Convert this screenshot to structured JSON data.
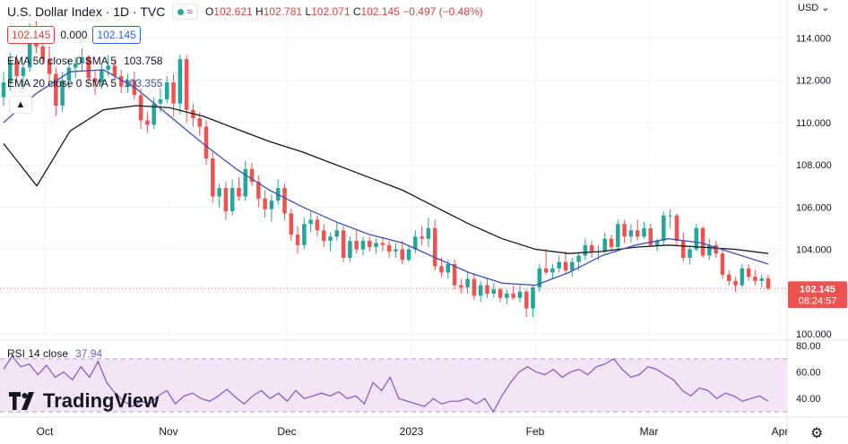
{
  "header": {
    "title": "U.S. Dollar Index · 1D · TVC",
    "wave_symbol": "≈",
    "ohlc": [
      {
        "label": "O",
        "value": "102.621"
      },
      {
        "label": "H",
        "value": "102.781"
      },
      {
        "label": "L",
        "value": "102.071"
      },
      {
        "label": "C",
        "value": "102.145"
      }
    ],
    "change": "−0.497 (−0.48%)"
  },
  "quote_boxes": {
    "bid": "102.145",
    "spread": "0.000",
    "ask": "102.145"
  },
  "indicators": [
    {
      "label": "EMA 50 close 0 SMA 5",
      "value": "103.758",
      "color": "#131722"
    },
    {
      "label": "EMA 20 close 0 SMA 5",
      "value": "103.355",
      "color": "#3f51b5"
    }
  ],
  "rsi": {
    "label": "RSI 14 close",
    "value": "37.94"
  },
  "currency": "USD",
  "price_tag": {
    "price": "102.145",
    "countdown": "08:24:57"
  },
  "logo_text": "TradingView",
  "colors": {
    "up": "#26a69a",
    "down": "#ef5350",
    "ema50": "#131722",
    "ema20": "#3f51b5",
    "rsi": "#7e57c2",
    "rsi_band": "#f3e5f5"
  },
  "chart_data": {
    "type": "candlestick",
    "y_axis": {
      "ticks": [
        "100.000",
        "102.000",
        "104.000",
        "106.000",
        "108.000",
        "110.000",
        "112.000",
        "114.000"
      ],
      "range": [
        99.7,
        115.8
      ]
    },
    "x_axis": {
      "ticks": [
        "Oct",
        "Nov",
        "Dec",
        "2023",
        "Feb",
        "Mar",
        "Apr"
      ]
    },
    "rsi_axis": {
      "ticks": [
        "80.00",
        "60.00",
        "40.00"
      ],
      "range": [
        26,
        84
      ],
      "band": [
        30,
        70
      ]
    },
    "candles": [
      [
        111.2,
        112.4,
        110.8,
        111.9
      ],
      [
        111.9,
        113.3,
        111.5,
        112.9
      ],
      [
        112.9,
        113.2,
        111.9,
        112.2
      ],
      [
        112.2,
        112.8,
        111.6,
        112.6
      ],
      [
        112.6,
        114.7,
        112.4,
        114.1
      ],
      [
        114.1,
        114.8,
        113.3,
        113.6
      ],
      [
        113.6,
        114.2,
        112.8,
        113.0
      ],
      [
        113.0,
        113.6,
        111.9,
        112.3
      ],
      [
        112.3,
        112.6,
        110.3,
        110.8
      ],
      [
        110.8,
        112.4,
        110.5,
        112.0
      ],
      [
        112.0,
        113.0,
        111.6,
        112.6
      ],
      [
        112.6,
        113.1,
        112.1,
        112.8
      ],
      [
        112.8,
        113.5,
        112.4,
        113.1
      ],
      [
        113.1,
        113.2,
        111.8,
        112.1
      ],
      [
        112.1,
        112.5,
        111.3,
        111.9
      ],
      [
        111.9,
        112.8,
        111.6,
        112.5
      ],
      [
        112.5,
        113.2,
        112.2,
        112.7
      ],
      [
        112.7,
        113.0,
        112.0,
        112.2
      ],
      [
        112.2,
        112.5,
        111.4,
        111.7
      ],
      [
        111.7,
        112.3,
        111.4,
        112.0
      ],
      [
        112.0,
        112.4,
        111.1,
        111.3
      ],
      [
        111.3,
        111.6,
        109.7,
        110.1
      ],
      [
        110.1,
        110.5,
        109.5,
        109.9
      ],
      [
        109.9,
        111.2,
        109.7,
        110.9
      ],
      [
        110.9,
        111.6,
        110.5,
        111.1
      ],
      [
        111.1,
        112.2,
        110.9,
        111.9
      ],
      [
        111.9,
        112.3,
        110.3,
        110.9
      ],
      [
        110.9,
        113.2,
        110.4,
        113.0
      ],
      [
        113.0,
        113.2,
        110.0,
        110.6
      ],
      [
        110.6,
        110.9,
        109.8,
        110.2
      ],
      [
        110.2,
        110.5,
        109.4,
        109.8
      ],
      [
        109.8,
        110.1,
        108.0,
        108.3
      ],
      [
        108.3,
        108.6,
        106.2,
        106.5
      ],
      [
        106.5,
        107.1,
        106.0,
        106.9
      ],
      [
        106.9,
        107.2,
        105.4,
        105.8
      ],
      [
        105.8,
        107.3,
        105.6,
        106.9
      ],
      [
        106.9,
        107.4,
        106.3,
        106.5
      ],
      [
        106.5,
        108.2,
        106.3,
        107.8
      ],
      [
        107.8,
        108.1,
        107.0,
        107.2
      ],
      [
        107.2,
        107.5,
        106.0,
        106.4
      ],
      [
        106.4,
        106.8,
        105.5,
        105.9
      ],
      [
        105.9,
        106.6,
        105.3,
        106.3
      ],
      [
        106.3,
        107.3,
        106.1,
        106.9
      ],
      [
        106.9,
        107.1,
        105.4,
        105.7
      ],
      [
        105.7,
        105.9,
        104.4,
        104.7
      ],
      [
        104.7,
        105.1,
        103.8,
        104.2
      ],
      [
        104.2,
        105.5,
        104.0,
        105.2
      ],
      [
        105.2,
        105.8,
        104.8,
        105.4
      ],
      [
        105.4,
        105.6,
        104.6,
        104.9
      ],
      [
        104.9,
        105.2,
        104.1,
        104.4
      ],
      [
        104.4,
        104.8,
        103.9,
        104.6
      ],
      [
        104.6,
        105.3,
        104.4,
        104.9
      ],
      [
        104.9,
        105.1,
        103.4,
        103.6
      ],
      [
        103.6,
        104.6,
        103.4,
        104.4
      ],
      [
        104.4,
        104.9,
        103.8,
        104.0
      ],
      [
        104.0,
        104.6,
        103.7,
        104.4
      ],
      [
        104.4,
        104.6,
        103.9,
        104.1
      ],
      [
        104.1,
        104.5,
        103.8,
        104.3
      ],
      [
        104.3,
        104.6,
        103.9,
        104.2
      ],
      [
        104.2,
        104.4,
        103.6,
        103.9
      ],
      [
        103.9,
        104.3,
        103.6,
        104.0
      ],
      [
        104.0,
        104.4,
        103.3,
        103.5
      ],
      [
        103.5,
        104.2,
        103.4,
        104.0
      ],
      [
        104.0,
        104.9,
        103.8,
        104.6
      ],
      [
        104.6,
        105.1,
        104.2,
        104.5
      ],
      [
        104.5,
        105.5,
        104.1,
        105.0
      ],
      [
        105.0,
        105.4,
        103.0,
        103.2
      ],
      [
        103.2,
        103.6,
        102.7,
        102.9
      ],
      [
        102.9,
        103.5,
        102.6,
        103.3
      ],
      [
        103.3,
        103.5,
        102.1,
        102.3
      ],
      [
        102.3,
        102.6,
        101.9,
        102.2
      ],
      [
        102.2,
        102.9,
        101.9,
        102.6
      ],
      [
        102.6,
        102.8,
        101.6,
        101.8
      ],
      [
        101.8,
        102.5,
        101.5,
        102.3
      ],
      [
        102.3,
        102.6,
        101.7,
        101.9
      ],
      [
        101.9,
        102.4,
        101.7,
        102.1
      ],
      [
        102.1,
        102.2,
        101.5,
        101.7
      ],
      [
        101.7,
        102.1,
        101.4,
        101.9
      ],
      [
        101.9,
        102.3,
        101.6,
        101.7
      ],
      [
        101.7,
        102.3,
        101.5,
        102.0
      ],
      [
        102.0,
        102.1,
        100.8,
        101.2
      ],
      [
        101.2,
        102.3,
        100.8,
        102.2
      ],
      [
        102.2,
        103.3,
        102.0,
        103.1
      ],
      [
        103.1,
        104.0,
        102.8,
        102.9
      ],
      [
        102.9,
        103.3,
        102.6,
        103.1
      ],
      [
        103.1,
        103.7,
        102.9,
        103.4
      ],
      [
        103.4,
        103.9,
        102.8,
        103.0
      ],
      [
        103.0,
        103.6,
        102.7,
        103.4
      ],
      [
        103.4,
        103.9,
        103.0,
        103.7
      ],
      [
        103.7,
        104.5,
        103.5,
        104.2
      ],
      [
        104.2,
        104.4,
        103.6,
        103.9
      ],
      [
        103.9,
        104.2,
        103.5,
        103.9
      ],
      [
        103.9,
        104.8,
        103.8,
        104.5
      ],
      [
        104.5,
        104.7,
        103.9,
        104.1
      ],
      [
        104.1,
        105.4,
        104.0,
        105.2
      ],
      [
        105.2,
        105.4,
        104.3,
        104.6
      ],
      [
        104.6,
        105.2,
        104.3,
        104.9
      ],
      [
        104.9,
        105.4,
        104.4,
        104.6
      ],
      [
        104.6,
        105.3,
        104.5,
        105.0
      ],
      [
        105.0,
        105.2,
        104.1,
        104.2
      ],
      [
        104.2,
        104.5,
        103.9,
        104.4
      ],
      [
        104.4,
        105.8,
        104.2,
        105.6
      ],
      [
        105.6,
        105.9,
        105.0,
        105.6
      ],
      [
        105.6,
        105.7,
        104.2,
        104.4
      ],
      [
        104.4,
        104.8,
        103.4,
        103.6
      ],
      [
        103.6,
        104.2,
        103.3,
        104.0
      ],
      [
        104.0,
        105.2,
        103.9,
        105.0
      ],
      [
        105.0,
        105.1,
        103.6,
        103.7
      ],
      [
        103.7,
        104.5,
        103.5,
        104.2
      ],
      [
        104.2,
        104.4,
        103.6,
        103.8
      ],
      [
        103.8,
        104.0,
        102.6,
        102.8
      ],
      [
        102.8,
        103.0,
        102.3,
        102.5
      ],
      [
        102.5,
        102.7,
        102.0,
        102.3
      ],
      [
        102.3,
        103.3,
        102.2,
        103.1
      ],
      [
        103.1,
        103.3,
        102.5,
        102.7
      ],
      [
        102.7,
        103.0,
        102.3,
        102.5
      ],
      [
        102.5,
        102.8,
        102.2,
        102.62
      ],
      [
        102.621,
        102.781,
        102.071,
        102.145
      ]
    ],
    "ema50": [
      109.0,
      107.0,
      109.6,
      110.6,
      110.8,
      110.7,
      110.3,
      109.7,
      109.1,
      108.6,
      108.0,
      107.4,
      106.8,
      106.0,
      105.2,
      104.5,
      104.0,
      103.8,
      103.9,
      104.1,
      104.2,
      104.1,
      104.0,
      103.8
    ],
    "ema20": [
      110.0,
      111.4,
      112.4,
      112.5,
      111.6,
      110.3,
      109.0,
      107.8,
      106.8,
      106.0,
      105.3,
      104.7,
      104.3,
      103.6,
      102.9,
      102.4,
      102.3,
      102.9,
      103.7,
      104.2,
      104.5,
      104.3,
      103.8,
      103.3
    ],
    "rsi": [
      62,
      72,
      64,
      66,
      58,
      65,
      56,
      60,
      54,
      64,
      56,
      68,
      52,
      44,
      38,
      34,
      38,
      36,
      42,
      46,
      36,
      42,
      44,
      40,
      38,
      42,
      47,
      41,
      36,
      42,
      46,
      40,
      44,
      38,
      46,
      40,
      42,
      44,
      42,
      45,
      40,
      42,
      36,
      52,
      46,
      56,
      40,
      38,
      36,
      34,
      40,
      36,
      38,
      38,
      40,
      36,
      40,
      30,
      42,
      52,
      60,
      64,
      60,
      58,
      62,
      56,
      60,
      62,
      58,
      64,
      66,
      70,
      62,
      56,
      58,
      64,
      62,
      58,
      54,
      46,
      42,
      48,
      46,
      40,
      44,
      42,
      38,
      40,
      42,
      38
    ]
  }
}
